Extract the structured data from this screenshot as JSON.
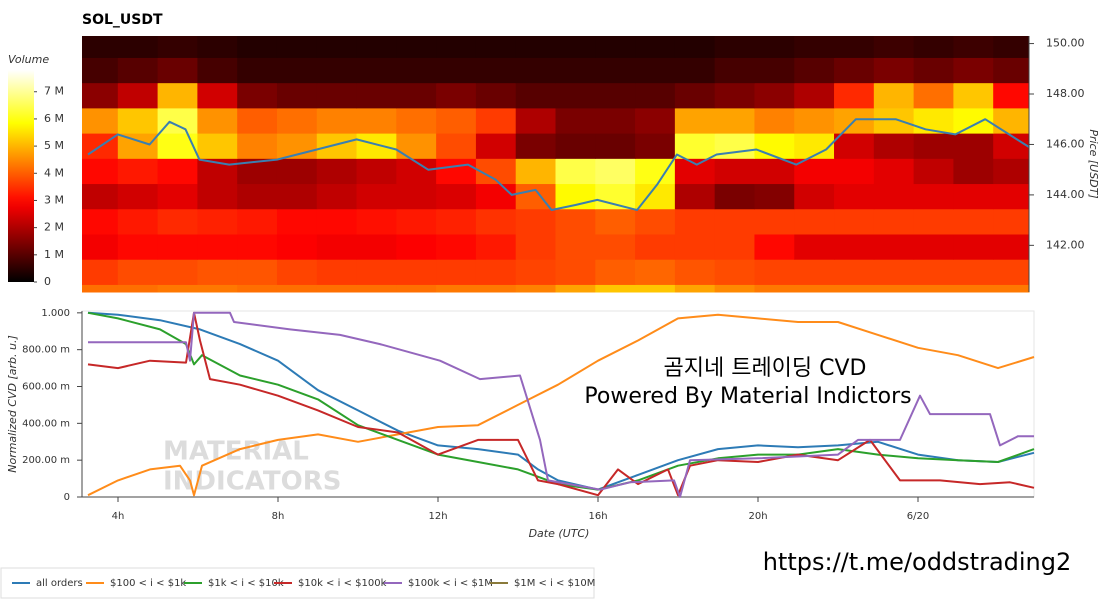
{
  "chart_data": [
    {
      "type": "heatmap",
      "title": "SOL_USDT",
      "ylabel": "Price [USDT]",
      "colormap": "hot",
      "xlim": [
        3.1,
        26.9
      ],
      "x_bins": [
        3.1,
        4,
        5,
        6,
        7,
        8,
        9,
        10,
        11,
        12,
        13,
        14,
        15,
        16,
        17,
        18,
        19,
        20,
        21,
        22,
        23,
        24,
        25,
        26,
        26.9
      ],
      "y_bins": [
        140.15,
        140.45,
        141.45,
        142.45,
        143.45,
        144.45,
        145.45,
        146.45,
        147.45,
        148.45,
        149.45,
        150.3
      ],
      "ylim": [
        140.15,
        150.3
      ],
      "yticks": [
        {
          "value": 150,
          "label": "150.00"
        },
        {
          "value": 148,
          "label": "148.00"
        },
        {
          "value": 146,
          "label": "146.00"
        },
        {
          "value": 144,
          "label": "144.00"
        },
        {
          "value": 142,
          "label": "142.00"
        }
      ],
      "values": [
        [
          4.2,
          4.2,
          4.3,
          4.3,
          4.2,
          4.2,
          4.2,
          4.2,
          4.2,
          4.3,
          4.3,
          4.4,
          4.8,
          5.2,
          5.2,
          4.8,
          4.5,
          4.3,
          4.3,
          4.3,
          4.3,
          4.3,
          4.3,
          4.3
        ],
        [
          3.6,
          3.8,
          3.8,
          3.9,
          3.9,
          3.7,
          3.6,
          3.6,
          3.6,
          3.6,
          3.6,
          3.7,
          3.8,
          4.0,
          4.1,
          3.9,
          3.8,
          3.7,
          3.7,
          3.7,
          3.7,
          3.7,
          3.7,
          3.7
        ],
        [
          2.8,
          3.0,
          3.0,
          3.0,
          3.0,
          2.9,
          2.8,
          2.8,
          2.9,
          3.0,
          3.2,
          3.6,
          3.8,
          3.8,
          3.6,
          3.6,
          3.6,
          3.0,
          2.6,
          2.6,
          2.6,
          2.6,
          2.6,
          2.6
        ],
        [
          3.0,
          3.2,
          3.4,
          3.3,
          3.2,
          3.0,
          3.0,
          3.1,
          3.2,
          3.3,
          3.5,
          3.6,
          3.8,
          4.0,
          3.8,
          3.6,
          3.6,
          3.6,
          3.6,
          3.6,
          3.6,
          3.6,
          3.6,
          3.6
        ],
        [
          2.2,
          2.4,
          2.6,
          2.2,
          2.0,
          2.0,
          2.2,
          2.4,
          2.4,
          2.5,
          2.8,
          4.0,
          5.8,
          6.2,
          5.6,
          2.0,
          1.4,
          1.5,
          2.4,
          2.6,
          2.6,
          2.6,
          2.6,
          2.6
        ],
        [
          3.0,
          3.2,
          3.0,
          2.2,
          1.8,
          1.8,
          2.0,
          2.2,
          2.4,
          3.0,
          3.8,
          5.0,
          6.4,
          6.6,
          6.0,
          2.6,
          2.4,
          2.4,
          2.8,
          2.8,
          2.6,
          2.2,
          1.8,
          2.0
        ],
        [
          3.4,
          4.8,
          6.0,
          5.2,
          4.4,
          4.6,
          5.2,
          5.6,
          4.6,
          3.8,
          2.4,
          1.4,
          1.2,
          1.2,
          1.4,
          6.2,
          6.4,
          5.8,
          5.6,
          2.4,
          2.0,
          1.8,
          1.8,
          2.4
        ],
        [
          4.6,
          5.2,
          6.4,
          4.6,
          4.0,
          4.2,
          4.4,
          4.4,
          4.2,
          4.0,
          3.6,
          2.0,
          1.4,
          1.4,
          1.6,
          4.8,
          4.8,
          4.4,
          4.6,
          4.8,
          5.2,
          5.6,
          5.8,
          5.0
        ],
        [
          1.6,
          2.2,
          5.0,
          2.4,
          1.4,
          1.2,
          1.2,
          1.2,
          1.2,
          1.4,
          1.2,
          1.0,
          1.0,
          1.0,
          1.0,
          1.2,
          1.4,
          1.6,
          2.0,
          3.4,
          5.0,
          4.2,
          5.2,
          3.0
        ],
        [
          0.8,
          1.0,
          1.2,
          0.8,
          0.6,
          0.6,
          0.6,
          0.6,
          0.6,
          0.6,
          0.6,
          0.6,
          0.6,
          0.6,
          0.6,
          0.6,
          0.8,
          0.8,
          1.0,
          1.2,
          1.4,
          1.2,
          1.4,
          1.2
        ],
        [
          0.5,
          0.5,
          0.6,
          0.5,
          0.4,
          0.4,
          0.4,
          0.4,
          0.4,
          0.4,
          0.4,
          0.4,
          0.4,
          0.4,
          0.4,
          0.4,
          0.5,
          0.5,
          0.6,
          0.6,
          0.7,
          0.6,
          0.7,
          0.6
        ]
      ],
      "colorbar": {
        "label": "Volume",
        "lim": [
          0,
          7.8
        ],
        "ticks": [
          0,
          {
            "value": 1,
            "label": "1 M"
          },
          {
            "value": 2,
            "label": "2 M"
          },
          {
            "value": 3,
            "label": "3 M"
          },
          {
            "value": 4,
            "label": "4 M"
          },
          {
            "value": 5,
            "label": "5 M"
          },
          {
            "value": 6,
            "label": "6 M"
          },
          {
            "value": 7,
            "label": "7 M"
          }
        ]
      },
      "price_line": {
        "color": "#3a7fb0",
        "x": [
          3.25,
          4,
          4.8,
          5.3,
          5.7,
          6.05,
          6.8,
          8,
          9,
          10,
          11,
          11.8,
          12.8,
          13.5,
          13.9,
          14.5,
          14.9,
          15.5,
          16.05,
          17.05,
          17.55,
          18.05,
          18.55,
          19.05,
          20.05,
          21.05,
          21.8,
          22.55,
          23.55,
          24.3,
          25.05,
          25.8,
          26.4,
          26.9
        ],
        "values": [
          145.6,
          146.4,
          146,
          146.9,
          146.6,
          145.4,
          145.2,
          145.4,
          145.8,
          146.2,
          145.8,
          145,
          145.2,
          144.6,
          144,
          144.2,
          143.4,
          143.6,
          143.8,
          143.4,
          144.4,
          145.6,
          145.2,
          145.6,
          145.8,
          145.2,
          145.8,
          147,
          147,
          146.6,
          146.4,
          147,
          146.4,
          145.9
        ]
      }
    },
    {
      "type": "line",
      "xlabel": "Date (UTC)",
      "ylabel": "Normalized CVD [arb. u.]",
      "xlim": [
        3.1,
        26.9
      ],
      "xticks": [
        {
          "value": 4,
          "label": "4h"
        },
        {
          "value": 8,
          "label": "8h"
        },
        {
          "value": 12,
          "label": "12h"
        },
        {
          "value": 16,
          "label": "16h"
        },
        {
          "value": 20,
          "label": "20h"
        },
        {
          "value": 24,
          "label": "6/20"
        }
      ],
      "ylim": [
        0,
        1.01
      ],
      "yticks": [
        0,
        {
          "value": 0.2,
          "label": "200.00 m"
        },
        {
          "value": 0.4,
          "label": "400.00 m"
        },
        {
          "value": 0.6,
          "label": "600.00 m"
        },
        {
          "value": 0.8,
          "label": "800.00 m"
        },
        {
          "value": 1,
          "label": "1.000"
        }
      ],
      "series": [
        {
          "name": "all orders",
          "color": "#2d7bb6",
          "x": [
            3.25,
            4,
            5.05,
            6.05,
            7.05,
            8,
            9,
            10,
            11,
            12,
            13,
            14,
            14.5,
            15,
            16,
            17,
            18,
            19,
            20,
            21,
            22,
            23,
            24,
            25,
            26,
            26.9
          ],
          "values": [
            1.0,
            0.99,
            0.96,
            0.91,
            0.83,
            0.74,
            0.58,
            0.47,
            0.36,
            0.28,
            0.26,
            0.23,
            0.15,
            0.09,
            0.04,
            0.12,
            0.2,
            0.26,
            0.28,
            0.27,
            0.28,
            0.3,
            0.23,
            0.2,
            0.19,
            0.24
          ]
        },
        {
          "name": "$100 < i < $1k",
          "color": "#ff8c1a",
          "x": [
            3.25,
            4,
            4.8,
            5.55,
            5.8,
            5.9,
            6.1,
            7.05,
            8,
            9,
            10,
            11,
            12,
            13,
            14,
            15,
            16,
            17,
            18,
            19,
            20,
            21,
            22,
            23,
            24,
            25,
            26,
            26.9
          ],
          "values": [
            0.01,
            0.09,
            0.15,
            0.17,
            0.09,
            0.01,
            0.17,
            0.26,
            0.31,
            0.34,
            0.3,
            0.34,
            0.38,
            0.39,
            0.5,
            0.61,
            0.74,
            0.85,
            0.97,
            0.99,
            0.97,
            0.95,
            0.95,
            0.88,
            0.81,
            0.77,
            0.7,
            0.76
          ]
        },
        {
          "name": "$1k < i < $10k",
          "color": "#2ca02c",
          "x": [
            3.25,
            4,
            5.05,
            5.7,
            5.9,
            6.1,
            7.05,
            8,
            9,
            10,
            11,
            12,
            13,
            14,
            15,
            16,
            17,
            18,
            19,
            20,
            21,
            22,
            23,
            24,
            25,
            26,
            26.9
          ],
          "values": [
            1.0,
            0.97,
            0.91,
            0.83,
            0.72,
            0.77,
            0.66,
            0.61,
            0.53,
            0.39,
            0.31,
            0.23,
            0.19,
            0.15,
            0.07,
            0.04,
            0.09,
            0.17,
            0.21,
            0.23,
            0.23,
            0.26,
            0.23,
            0.21,
            0.2,
            0.19,
            0.26
          ]
        },
        {
          "name": "$10k < i < $100k",
          "color": "#c62828",
          "x": [
            3.25,
            4,
            4.8,
            5.7,
            5.9,
            6.05,
            6.3,
            7.05,
            8,
            9,
            10,
            11,
            12,
            13,
            14,
            14.5,
            15,
            16,
            16.5,
            17,
            17.75,
            18,
            18.3,
            19,
            20,
            21,
            22,
            22.8,
            23.55,
            24.55,
            25.55,
            26.3,
            26.9
          ],
          "values": [
            0.72,
            0.7,
            0.74,
            0.73,
            1.0,
            0.85,
            0.64,
            0.61,
            0.55,
            0.47,
            0.38,
            0.35,
            0.23,
            0.31,
            0.31,
            0.09,
            0.07,
            0.01,
            0.15,
            0.07,
            0.15,
            0.01,
            0.17,
            0.2,
            0.19,
            0.23,
            0.2,
            0.31,
            0.09,
            0.09,
            0.07,
            0.08,
            0.05
          ]
        },
        {
          "name": "$100k < i < $1M",
          "color": "#9467bd",
          "x": [
            3.25,
            5.7,
            5.8,
            5.9,
            6.8,
            6.9,
            8.3,
            9.55,
            10.55,
            12.05,
            13.05,
            14.05,
            14.55,
            14.75,
            16.05,
            16.8,
            17.9,
            18.05,
            18.3,
            20,
            22,
            22.5,
            23.55,
            24.05,
            24.3,
            25.8,
            26.05,
            26.5,
            26.9
          ],
          "values": [
            0.84,
            0.84,
            0.74,
            1.0,
            1.0,
            0.95,
            0.91,
            0.88,
            0.83,
            0.74,
            0.64,
            0.66,
            0.31,
            0.09,
            0.04,
            0.08,
            0.09,
            0,
            0.2,
            0.21,
            0.23,
            0.31,
            0.31,
            0.55,
            0.45,
            0.45,
            0.28,
            0.33,
            0.33
          ]
        },
        {
          "name": "$1M < i < $10M",
          "color": "#8a7a3a",
          "x": [],
          "values": []
        }
      ]
    }
  ],
  "annotations": {
    "watermark": [
      "MATERIAL",
      "INDICATORS"
    ],
    "caption": "곰지네 트레이딩 CVD",
    "powered": "Powered By Material Indictors",
    "url": "https://t.me/oddstrading2"
  }
}
